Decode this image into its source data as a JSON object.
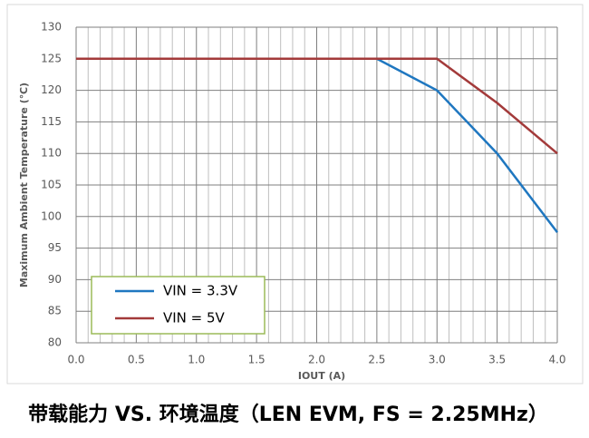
{
  "chart_data": {
    "type": "line",
    "title": "带载能力 VS. 环境温度（LEN EVM, FS = 2.25MHz）",
    "x_label": "IOUT (A)",
    "y_label": "Maximum Ambient Temperature (℃)",
    "x": [
      0,
      2.5,
      3.0,
      3.5,
      4.0
    ],
    "series": [
      {
        "name": "VIN = 3.3V",
        "color": "#1f77c0",
        "values": [
          125,
          125,
          120,
          110,
          97.5
        ]
      },
      {
        "name": "VIN = 5V",
        "color": "#a33a3a",
        "values": [
          125,
          125,
          125,
          118,
          110
        ]
      }
    ],
    "xlim": [
      0,
      4
    ],
    "ylim": [
      80,
      130
    ],
    "xticks": [
      {
        "value": 0,
        "label": "0.0"
      },
      0.5,
      {
        "value": 1,
        "label": "1.0"
      },
      1.5,
      {
        "value": 2,
        "label": "2.0"
      },
      2.5,
      {
        "value": 3,
        "label": "3.0"
      },
      3.5,
      {
        "value": 4,
        "label": "4.0"
      }
    ],
    "xminorticks": [
      0.1,
      0.2,
      0.3,
      0.4,
      0.6,
      0.7,
      0.8,
      0.9,
      1.1,
      1.2,
      1.3,
      1.4,
      1.6,
      1.7,
      1.8,
      1.9,
      2.1,
      2.2,
      2.3,
      2.4,
      2.6,
      2.7,
      2.8,
      2.9,
      3.1,
      3.2,
      3.3,
      3.4,
      3.6,
      3.7,
      3.8,
      3.9
    ],
    "yticks": [
      80,
      85,
      90,
      95,
      100,
      105,
      110,
      115,
      120,
      125,
      130
    ],
    "grid": true,
    "legend": "lower left"
  }
}
